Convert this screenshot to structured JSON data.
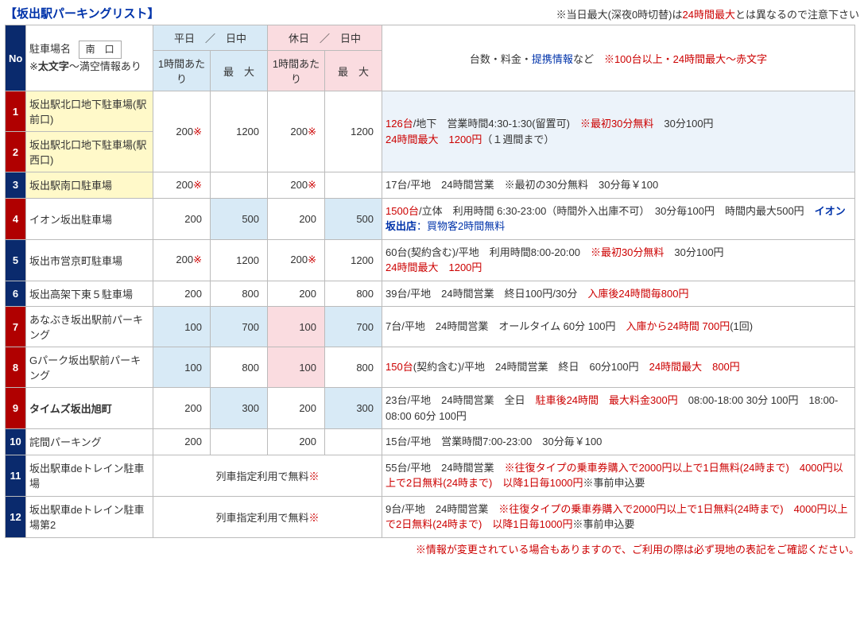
{
  "title": "【坂出駅パーキングリスト】",
  "topnote_prefix": "※当日最大(深夜0時切替)は",
  "topnote_red": "24時間最大",
  "topnote_suffix": "とは異なるので注意下さい",
  "header": {
    "no": "No",
    "name_line1": "駐車場名",
    "south": "南　口",
    "name_line2_prefix": "※",
    "name_line2_bold": "太文字",
    "name_line2_suffix": "～満空情報あり",
    "weekday": "平日　／　日中",
    "holiday": "休日　／　日中",
    "perhour": "1時間あたり",
    "max": "最　大",
    "info_prefix": "台数・料金・",
    "info_link": "提携情報",
    "info_mid": "など　",
    "info_red": "※100台以上・24時間最大～赤文字"
  },
  "free_text": "列車指定利用で無料",
  "mark": "※",
  "footer": "※情報が変更されている場合もありますので、ご利用の際は必ず現地の表記をご確認ください。",
  "rows": [
    {
      "no": "1",
      "no_red": true,
      "name": "坂出駅北口地下駐車場(駅前口)",
      "name_style": "yellow",
      "merge_with_next": true
    },
    {
      "no": "2",
      "no_red": true,
      "name": "坂出駅北口地下駐車場(駅西口)",
      "name_style": "yellow",
      "wd_hr": "200",
      "wd_hr_mark": true,
      "wd_mx": "1200",
      "hl_hr": "200",
      "hl_hr_mark": true,
      "hl_mx": "1200",
      "info_lblue": true,
      "info": [
        {
          "r": true,
          "t": "126台"
        },
        {
          "t": "/地下　営業時間4:30-1:30(留置可)　"
        },
        {
          "r": true,
          "t": "※最初30分無料"
        },
        {
          "t": "　30分100円　"
        },
        {
          "br": true
        },
        {
          "r": true,
          "t": "24時間最大　1200円"
        },
        {
          "t": "（１週間まで）"
        }
      ]
    },
    {
      "no": "3",
      "no_red": false,
      "name": "坂出駅南口駐車場",
      "name_style": "yellow",
      "wd_hr": "200",
      "wd_hr_mark": true,
      "wd_mx": "",
      "hl_hr": "200",
      "hl_hr_mark": true,
      "hl_mx": "",
      "info": [
        {
          "t": "17台/平地　24時間営業　※最初の30分無料　30分毎￥100"
        }
      ]
    },
    {
      "no": "4",
      "no_red": true,
      "name": "イオン坂出駐車場",
      "wd_hr": "200",
      "wd_mx": "500",
      "wd_mx_bg": "blue",
      "hl_hr": "200",
      "hl_mx": "500",
      "hl_mx_bg": "blue",
      "info": [
        {
          "r": true,
          "t": "1500台"
        },
        {
          "t": "/立体　利用時間 6:30-23:00（時間外入出庫不可）　30分毎100円　時間内最大500円　"
        },
        {
          "b": true,
          "bold": true,
          "t": "イオン坂出店"
        },
        {
          "b": true,
          "t": "：買物客2時間無料"
        }
      ]
    },
    {
      "no": "5",
      "no_red": false,
      "name": "坂出市営京町駐車場",
      "wd_hr": "200",
      "wd_hr_mark": true,
      "wd_mx": "1200",
      "hl_hr": "200",
      "hl_hr_mark": true,
      "hl_mx": "1200",
      "info": [
        {
          "t": "60台(契約含む)/平地　利用時間8:00-20:00　"
        },
        {
          "r": true,
          "t": "※最初30分無料"
        },
        {
          "t": "　30分100円　"
        },
        {
          "br": true
        },
        {
          "r": true,
          "t": "24時間最大　1200円"
        }
      ]
    },
    {
      "no": "6",
      "no_red": false,
      "name": "坂出高架下東５駐車場",
      "wd_hr": "200",
      "wd_mx": "800",
      "hl_hr": "200",
      "hl_mx": "800",
      "info": [
        {
          "t": "39台/平地　24時間営業　終日100円/30分　"
        },
        {
          "r": true,
          "t": "入庫後24時間毎800円"
        }
      ]
    },
    {
      "no": "7",
      "no_red": true,
      "name": "あなぶき坂出駅前パーキング",
      "wd_hr": "100",
      "wd_hr_bg": "blue",
      "wd_mx": "700",
      "wd_mx_bg": "blue",
      "hl_hr": "100",
      "hl_hr_bg": "pink",
      "hl_mx": "700",
      "hl_mx_bg": "blue",
      "info": [
        {
          "t": "7台/平地　24時間営業　オールタイム 60分 100円　"
        },
        {
          "r": true,
          "t": "入庫から24時間 700円"
        },
        {
          "t": "(1回)"
        }
      ]
    },
    {
      "no": "8",
      "no_red": true,
      "name": "Gパーク坂出駅前パーキング",
      "wd_hr": "100",
      "wd_hr_bg": "blue",
      "wd_mx": "800",
      "hl_hr": "100",
      "hl_hr_bg": "pink",
      "hl_mx": "800",
      "info": [
        {
          "r": true,
          "t": "150台"
        },
        {
          "t": "(契約含む)/平地　24時間営業　終日　60分100円　"
        },
        {
          "r": true,
          "t": "24時間最大　800円"
        }
      ]
    },
    {
      "no": "9",
      "no_red": true,
      "name": "タイムズ坂出旭町",
      "name_style": "bold",
      "wd_hr": "200",
      "wd_mx": "300",
      "wd_mx_bg": "blue",
      "hl_hr": "200",
      "hl_mx": "300",
      "hl_mx_bg": "blue",
      "info": [
        {
          "t": "23台/平地　24時間営業　全日　"
        },
        {
          "r": true,
          "t": "駐車後24時間　最大料金300円"
        },
        {
          "t": "　08:00-18:00 30分 100円　18:00-08:00 60分 100円"
        }
      ]
    },
    {
      "no": "10",
      "no_red": false,
      "name": "詫間パーキング",
      "wd_hr": "200",
      "wd_mx": "",
      "hl_hr": "200",
      "hl_mx": "",
      "info": [
        {
          "t": "15台/平地　営業時間7:00-23:00　30分毎￥100"
        }
      ]
    },
    {
      "no": "11",
      "no_red": false,
      "name": "坂出駅車deトレイン駐車場",
      "free": true,
      "info": [
        {
          "t": "55台/平地　24時間営業　"
        },
        {
          "r": true,
          "t": "※往復タイプの乗車券購入で2000円以上で1日無料(24時まで)　4000円以上で2日無料(24時まで)　以降1日毎1000円"
        },
        {
          "t": "※事前申込要"
        }
      ]
    },
    {
      "no": "12",
      "no_red": false,
      "name": "坂出駅車deトレイン駐車場第2",
      "free": true,
      "info": [
        {
          "t": "9台/平地　24時間営業　"
        },
        {
          "r": true,
          "t": "※往復タイプの乗車券購入で2000円以上で1日無料(24時まで)　4000円以上で2日無料(24時まで)　以降1日毎1000円"
        },
        {
          "t": "※事前申込要"
        }
      ]
    }
  ]
}
